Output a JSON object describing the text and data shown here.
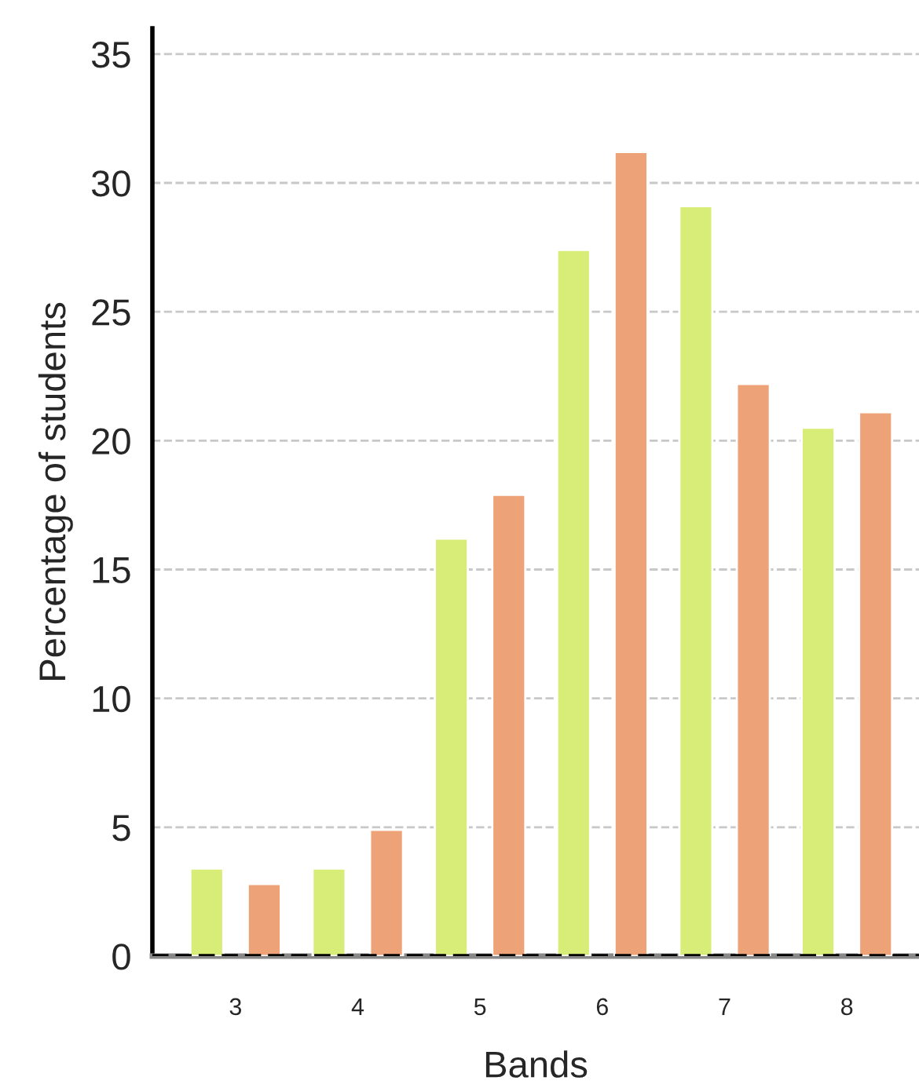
{
  "chart_data": {
    "type": "bar",
    "xlabel": "Bands",
    "ylabel": "Percentage of students",
    "categories": [
      "3",
      "4",
      "5",
      "6",
      "7",
      "8"
    ],
    "series": [
      {
        "color": "#d8ed78",
        "values": [
          3.4,
          3.4,
          16.2,
          27.4,
          29.1,
          20.5
        ]
      },
      {
        "color": "#eea277",
        "values": [
          2.8,
          4.9,
          17.9,
          31.2,
          22.2,
          21.1
        ]
      }
    ],
    "ylim": [
      0,
      36
    ],
    "yticks": [
      0,
      5,
      10,
      15,
      20,
      25,
      30,
      35
    ],
    "grid": "y",
    "ref_lines": [
      {
        "axis": "y",
        "value": 0,
        "color": "#000000",
        "line_style": "dashed"
      }
    ]
  }
}
